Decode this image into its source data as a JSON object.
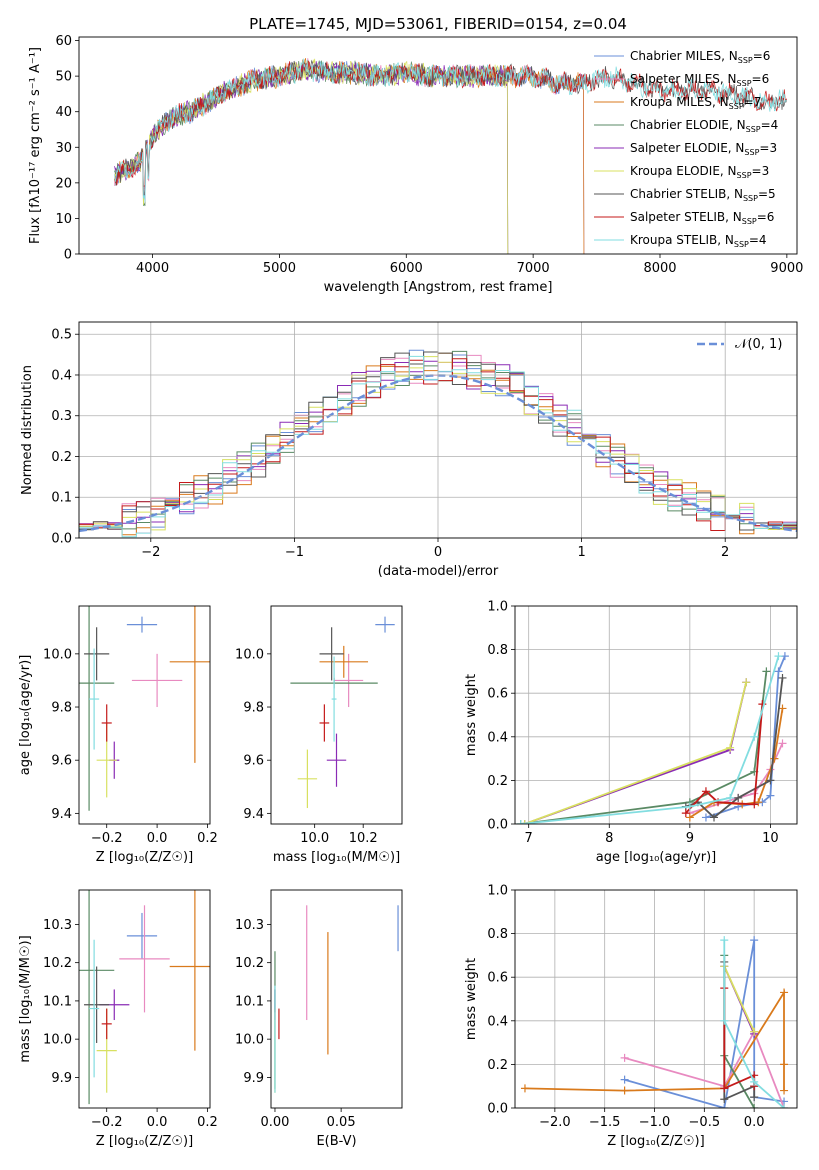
{
  "figure": {
    "title": "PLATE=1745, MJD=53061, FIBERID=0154, z=0.04"
  },
  "colors": {
    "Chabrier MILES": "#6a8fd8",
    "Salpeter MILES": "#e88ac0",
    "Kroupa MILES": "#d97a1c",
    "Chabrier ELODIE": "#5a8a64",
    "Salpeter ELODIE": "#8a2bb5",
    "Kroupa ELODIE": "#d8e060",
    "Chabrier STELIB": "#555555",
    "Salpeter STELIB": "#c41a1a",
    "Kroupa STELIB": "#82dde0",
    "gaussian": "#6a8fd8"
  },
  "chart_data": [
    {
      "type": "line",
      "panel": "spectrum",
      "xlabel": "wavelength [Angstrom, rest frame]",
      "ylabel": "Flux [fλ10⁻¹⁷ erg cm⁻² s⁻¹ A⁻¹]",
      "xlim": [
        3420,
        9080
      ],
      "ylim": [
        0,
        61
      ],
      "xticks": [
        4000,
        5000,
        6000,
        7000,
        8000,
        9000
      ],
      "yticks": [
        0,
        10,
        20,
        30,
        40,
        50,
        60
      ],
      "legend_position": "top-right",
      "continuum": {
        "x": [
          3700,
          3800,
          3900,
          4000,
          4100,
          4200,
          4300,
          4400,
          4600,
          4800,
          5000,
          5200,
          5400,
          5600,
          5800,
          6000,
          6200,
          6400,
          6600,
          6800,
          7000,
          7200,
          7400,
          7600,
          7800,
          8000,
          8200,
          8400,
          8600,
          8800
        ],
        "y": [
          22,
          24,
          26,
          33,
          37,
          39,
          40,
          42,
          46,
          49,
          50,
          52,
          51,
          51,
          50,
          51,
          50,
          50,
          50,
          50,
          50,
          48,
          48,
          50,
          48,
          46,
          46,
          46,
          45,
          43
        ]
      },
      "series": [
        {
          "name": "Chabrier MILES",
          "nssp": "6",
          "x_end": 7400
        },
        {
          "name": "Salpeter MILES",
          "nssp": "6",
          "x_end": 7400
        },
        {
          "name": "Kroupa MILES",
          "nssp": "7",
          "x_end": 7400
        },
        {
          "name": "Chabrier ELODIE",
          "nssp": "4",
          "x_end": 6800
        },
        {
          "name": "Salpeter ELODIE",
          "nssp": "3",
          "x_end": 6800
        },
        {
          "name": "Kroupa ELODIE",
          "nssp": "3",
          "x_end": 6800
        },
        {
          "name": "Chabrier STELIB",
          "nssp": "5",
          "x_end": 9000
        },
        {
          "name": "Salpeter STELIB",
          "nssp": "6",
          "x_end": 9000
        },
        {
          "name": "Kroupa STELIB",
          "nssp": "4",
          "x_end": 9000
        }
      ]
    },
    {
      "type": "histogram",
      "panel": "residuals",
      "xlabel": "(data-model)/error",
      "ylabel": "Normed distribution",
      "xlim": [
        -2.5,
        2.5
      ],
      "ylim": [
        0,
        0.53
      ],
      "xticks": [
        -2,
        -1,
        0,
        1,
        2
      ],
      "yticks": [
        0.0,
        0.1,
        0.2,
        0.3,
        0.4,
        0.5
      ],
      "grid": true,
      "legend_position": "top-right",
      "gaussian_label": "𝒩(0, 1)",
      "bin_width": 0.1,
      "series": [
        "Chabrier MILES",
        "Salpeter MILES",
        "Kroupa MILES",
        "Chabrier ELODIE",
        "Salpeter ELODIE",
        "Kroupa ELODIE",
        "Chabrier STELIB",
        "Salpeter STELIB",
        "Kroupa STELIB"
      ]
    },
    {
      "type": "errorbar",
      "panel": "age_vs_Z",
      "xlabel": "Z [log₁₀(Z/Z☉)]",
      "ylabel": "age  [log₁₀(age/yr)]",
      "xlim": [
        -0.31,
        0.21
      ],
      "ylim": [
        9.36,
        10.18
      ],
      "xticks": [
        -0.2,
        0.0,
        0.2
      ],
      "yticks": [
        9.4,
        9.6,
        9.8,
        10.0
      ],
      "points": [
        {
          "series": "Chabrier MILES",
          "x": -0.06,
          "xerr": 0.06,
          "y": 10.11,
          "yerr": 0.03
        },
        {
          "series": "Salpeter MILES",
          "x": 0.0,
          "xerr": 0.1,
          "y": 9.9,
          "yerr": 0.1
        },
        {
          "series": "Kroupa MILES",
          "x": 0.15,
          "xerr": 0.1,
          "y": 9.97,
          "yerr": 0.38
        },
        {
          "series": "Chabrier ELODIE",
          "x": -0.27,
          "xerr": 0.1,
          "y": 9.89,
          "yerr": 0.48
        },
        {
          "series": "Salpeter ELODIE",
          "x": -0.17,
          "xerr": 0.02,
          "y": 9.6,
          "yerr": 0.07
        },
        {
          "series": "Kroupa ELODIE",
          "x": -0.2,
          "xerr": 0.04,
          "y": 9.6,
          "yerr": 0.14
        },
        {
          "series": "Chabrier STELIB",
          "x": -0.24,
          "xerr": 0.05,
          "y": 10.0,
          "yerr": 0.1
        },
        {
          "series": "Salpeter STELIB",
          "x": -0.2,
          "xerr": 0.02,
          "y": 9.74,
          "yerr": 0.07
        },
        {
          "series": "Kroupa STELIB",
          "x": -0.25,
          "xerr": 0.02,
          "y": 9.83,
          "yerr": 0.19
        }
      ]
    },
    {
      "type": "errorbar",
      "panel": "age_vs_mass",
      "xlabel": "mass [log₁₀(M/M☉)]",
      "ylabel": "",
      "xlim": [
        9.82,
        10.36
      ],
      "ylim": [
        9.36,
        10.18
      ],
      "xticks": [
        10.0,
        10.2
      ],
      "yticks": [
        9.4,
        9.6,
        9.8,
        10.0
      ],
      "points": [
        {
          "series": "Chabrier MILES",
          "x": 10.29,
          "xerr": 0.04,
          "y": 10.11,
          "yerr": 0.03
        },
        {
          "series": "Salpeter MILES",
          "x": 10.14,
          "xerr": 0.06,
          "y": 9.9,
          "yerr": 0.1
        },
        {
          "series": "Kroupa MILES",
          "x": 10.12,
          "xerr": 0.1,
          "y": 9.97,
          "yerr": 0.06
        },
        {
          "series": "Chabrier ELODIE",
          "x": 10.08,
          "xerr": 0.18,
          "y": 9.89,
          "yerr": 0.02
        },
        {
          "series": "Salpeter ELODIE",
          "x": 10.09,
          "xerr": 0.04,
          "y": 9.6,
          "yerr": 0.1
        },
        {
          "series": "Kroupa ELODIE",
          "x": 9.97,
          "xerr": 0.04,
          "y": 9.53,
          "yerr": 0.11
        },
        {
          "series": "Chabrier STELIB",
          "x": 10.07,
          "xerr": 0.05,
          "y": 10.0,
          "yerr": 0.1
        },
        {
          "series": "Salpeter STELIB",
          "x": 10.04,
          "xerr": 0.02,
          "y": 9.74,
          "yerr": 0.07
        },
        {
          "series": "Kroupa STELIB",
          "x": 10.08,
          "xerr": 0.01,
          "y": 9.83,
          "yerr": 0.16
        }
      ]
    },
    {
      "type": "line",
      "panel": "mass_weight_vs_age",
      "xlabel": "age  [log₁₀(age/yr)]",
      "ylabel": "mass weight",
      "xlim": [
        6.83,
        10.33
      ],
      "ylim": [
        0,
        1.0
      ],
      "xticks": [
        7,
        8,
        9,
        10
      ],
      "yticks": [
        0.0,
        0.2,
        0.4,
        0.6,
        0.8,
        1.0
      ],
      "grid": true,
      "series": [
        {
          "name": "Chabrier MILES",
          "x": [
            9.2,
            9.6,
            9.9,
            10.0,
            10.1,
            10.18
          ],
          "y": [
            0.03,
            0.08,
            0.1,
            0.13,
            0.7,
            0.77
          ]
        },
        {
          "name": "Salpeter MILES",
          "x": [
            9.0,
            9.6,
            9.8,
            10.0,
            10.15
          ],
          "y": [
            0.05,
            0.12,
            0.14,
            0.25,
            0.37
          ]
        },
        {
          "name": "Kroupa MILES",
          "x": [
            9.0,
            9.3,
            9.65,
            9.85,
            10.05,
            10.15
          ],
          "y": [
            0.03,
            0.1,
            0.09,
            0.1,
            0.3,
            0.53
          ]
        },
        {
          "name": "Chabrier ELODIE",
          "x": [
            6.9,
            9.0,
            9.8,
            9.95
          ],
          "y": [
            0.0,
            0.1,
            0.24,
            0.7
          ]
        },
        {
          "name": "Salpeter ELODIE",
          "x": [
            6.95,
            9.5,
            9.7
          ],
          "y": [
            0.0,
            0.34,
            0.65
          ]
        },
        {
          "name": "Kroupa ELODIE",
          "x": [
            6.95,
            9.5,
            9.7
          ],
          "y": [
            0.0,
            0.35,
            0.65
          ]
        },
        {
          "name": "Chabrier STELIB",
          "x": [
            8.95,
            9.1,
            9.3,
            9.6,
            10.0,
            10.15
          ],
          "y": [
            0.08,
            0.1,
            0.03,
            0.12,
            0.2,
            0.67
          ]
        },
        {
          "name": "Salpeter STELIB",
          "x": [
            8.95,
            9.2,
            9.35,
            9.8,
            9.9
          ],
          "y": [
            0.05,
            0.15,
            0.1,
            0.09,
            0.55
          ]
        },
        {
          "name": "Kroupa STELIB",
          "x": [
            6.9,
            9.0,
            9.5,
            9.8,
            10.1
          ],
          "y": [
            0.0,
            0.08,
            0.12,
            0.4,
            0.77
          ]
        }
      ]
    },
    {
      "type": "errorbar",
      "panel": "mass_vs_Z",
      "xlabel": "Z [log₁₀(Z/Z☉)]",
      "ylabel": "mass [log₁₀(M/M☉)]",
      "xlim": [
        -0.31,
        0.21
      ],
      "ylim": [
        9.82,
        10.39
      ],
      "xticks": [
        -0.2,
        0.0,
        0.2
      ],
      "yticks": [
        9.9,
        10.0,
        10.1,
        10.2,
        10.3
      ],
      "points": [
        {
          "series": "Chabrier MILES",
          "x": -0.06,
          "xerr": 0.06,
          "y": 10.27,
          "yerr": 0.06
        },
        {
          "series": "Salpeter MILES",
          "x": -0.05,
          "xerr": 0.1,
          "y": 10.21,
          "yerr": 0.14
        },
        {
          "series": "Kroupa MILES",
          "x": 0.15,
          "xerr": 0.1,
          "y": 10.19,
          "yerr": 0.22
        },
        {
          "series": "Chabrier ELODIE",
          "x": -0.27,
          "xerr": 0.1,
          "y": 10.18,
          "yerr": 0.35
        },
        {
          "series": "Salpeter ELODIE",
          "x": -0.17,
          "xerr": 0.06,
          "y": 10.09,
          "yerr": 0.04
        },
        {
          "series": "Kroupa ELODIE",
          "x": -0.2,
          "xerr": 0.04,
          "y": 9.97,
          "yerr": 0.11
        },
        {
          "series": "Chabrier STELIB",
          "x": -0.24,
          "xerr": 0.05,
          "y": 10.09,
          "yerr": 0.1
        },
        {
          "series": "Salpeter STELIB",
          "x": -0.2,
          "xerr": 0.02,
          "y": 10.04,
          "yerr": 0.04
        },
        {
          "series": "Kroupa STELIB",
          "x": -0.25,
          "xerr": 0.02,
          "y": 10.08,
          "yerr": 0.18
        }
      ]
    },
    {
      "type": "errorbar",
      "panel": "mass_vs_ebv",
      "xlabel": "E(B-V)",
      "ylabel": "",
      "xlim": [
        -0.003,
        0.096
      ],
      "ylim": [
        9.82,
        10.39
      ],
      "xticks": [
        0.0,
        0.05
      ],
      "xticklabels": [
        "0.00",
        "0.05"
      ],
      "yticks": [
        9.9,
        10.0,
        10.1,
        10.2,
        10.3
      ],
      "points": [
        {
          "series": "Chabrier MILES",
          "x": 0.093,
          "xerr": 0.0,
          "y": 10.29,
          "yerr": 0.06
        },
        {
          "series": "Salpeter MILES",
          "x": 0.024,
          "xerr": 0.0,
          "y": 10.2,
          "yerr": 0.15
        },
        {
          "series": "Kroupa MILES",
          "x": 0.04,
          "xerr": 0.0,
          "y": 10.12,
          "yerr": 0.16
        },
        {
          "series": "Chabrier ELODIE",
          "x": 0.0,
          "xerr": 0.0,
          "y": 10.05,
          "yerr": 0.18
        },
        {
          "series": "Salpeter ELODIE",
          "x": 0.0,
          "xerr": 0.0,
          "y": 10.09,
          "yerr": 0.04
        },
        {
          "series": "Kroupa ELODIE",
          "x": 0.0,
          "xerr": 0.0,
          "y": 9.97,
          "yerr": 0.11
        },
        {
          "series": "Chabrier STELIB",
          "x": 0.0,
          "xerr": 0.0,
          "y": 10.1,
          "yerr": 0.03
        },
        {
          "series": "Salpeter STELIB",
          "x": 0.003,
          "xerr": 0.0,
          "y": 10.04,
          "yerr": 0.04
        },
        {
          "series": "Kroupa STELIB",
          "x": 0.0,
          "xerr": 0.0,
          "y": 10.0,
          "yerr": 0.14
        }
      ]
    },
    {
      "type": "line",
      "panel": "mass_weight_vs_Z",
      "xlabel": "Z [log₁₀(Z/Z☉)]",
      "ylabel": "mass weight",
      "xlim": [
        -2.4,
        0.43
      ],
      "ylim": [
        0,
        1.0
      ],
      "xticks": [
        -2.0,
        -1.5,
        -1.0,
        -0.5,
        0.0
      ],
      "yticks": [
        0.0,
        0.2,
        0.4,
        0.6,
        0.8,
        1.0
      ],
      "grid": true,
      "series": [
        {
          "name": "Chabrier MILES",
          "x": [
            -1.3,
            -0.3,
            0.0,
            0.0,
            0.3
          ],
          "y": [
            0.13,
            0.0,
            0.77,
            0.05,
            0.03
          ]
        },
        {
          "name": "Salpeter MILES",
          "x": [
            -1.3,
            -0.3,
            0.0,
            0.3
          ],
          "y": [
            0.23,
            0.1,
            0.35,
            0.0
          ]
        },
        {
          "name": "Kroupa MILES",
          "x": [
            -2.3,
            -1.3,
            -0.3,
            0.3,
            0.3,
            0.3
          ],
          "y": [
            0.09,
            0.08,
            0.09,
            0.53,
            0.2,
            0.08
          ]
        },
        {
          "name": "Chabrier ELODIE",
          "x": [
            -0.3,
            -0.3,
            0.0
          ],
          "y": [
            0.7,
            0.24,
            0.0
          ]
        },
        {
          "name": "Salpeter ELODIE",
          "x": [
            -0.3,
            0.0
          ],
          "y": [
            0.65,
            0.34
          ]
        },
        {
          "name": "Kroupa ELODIE",
          "x": [
            -0.3,
            0.0
          ],
          "y": [
            0.65,
            0.35
          ]
        },
        {
          "name": "Chabrier STELIB",
          "x": [
            -0.3,
            -0.3,
            0.0,
            0.0
          ],
          "y": [
            0.67,
            0.04,
            0.1,
            0.05
          ]
        },
        {
          "name": "Salpeter STELIB",
          "x": [
            -0.3,
            -0.3,
            0.0,
            0.0
          ],
          "y": [
            0.55,
            0.09,
            0.15,
            0.1
          ]
        },
        {
          "name": "Kroupa STELIB",
          "x": [
            -0.3,
            -0.3,
            0.0,
            0.3
          ],
          "y": [
            0.77,
            0.4,
            0.12,
            0.0
          ]
        }
      ]
    }
  ]
}
